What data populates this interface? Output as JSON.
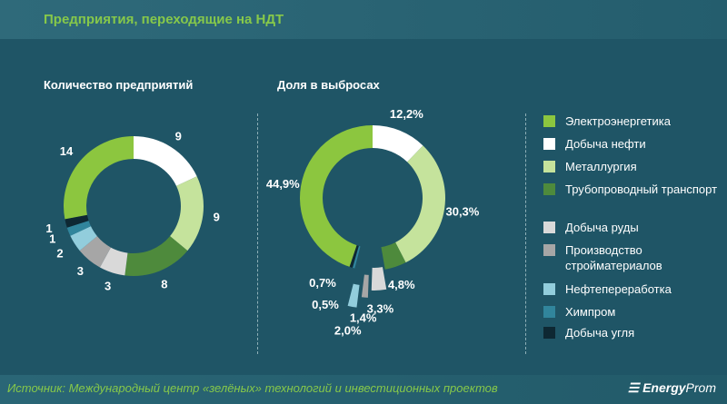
{
  "title": "Предприятия, переходящие на НДТ",
  "source": "Источник: Международный  центр «зелёных» технологий и инвестиционных  проектов",
  "logo": {
    "a": "Energy",
    "b": "Prom"
  },
  "chart_data": [
    {
      "type": "pie",
      "title": "Количество  предприятий",
      "categories": [
        "Добыча нефти",
        "Металлургия",
        "Трубопроводный транспорт",
        "Добыча руды",
        "Производство стройматериалов",
        "Нефтепереработка",
        "Химпром",
        "Добыча угля",
        "Электроэнергетика"
      ],
      "values": [
        9,
        9,
        8,
        3,
        3,
        2,
        1,
        1,
        14
      ],
      "labels": [
        "9",
        "9",
        "8",
        "3",
        "3",
        "2",
        "1",
        "1",
        "14"
      ]
    },
    {
      "type": "pie",
      "title": "Доля в выбросах",
      "categories": [
        "Добыча нефти",
        "Металлургия",
        "Трубопроводный транспорт",
        "Добыча руды",
        "Производство стройматериалов",
        "Нефтепереработка",
        "Химпром",
        "Добыча угля",
        "Электроэнергетика"
      ],
      "values": [
        12.2,
        30.3,
        4.8,
        3.3,
        1.4,
        2.0,
        0.5,
        0.7,
        44.9
      ],
      "labels": [
        "12,2%",
        "30,3%",
        "4,8%",
        "3,3%",
        "1,4%",
        "2,0%",
        "0,5%",
        "0,7%",
        "44,9%"
      ]
    }
  ],
  "legend": [
    {
      "label": "Электроэнергетика",
      "color": "#8cc63f"
    },
    {
      "label": "Добыча нефти",
      "color": "#ffffff"
    },
    {
      "label": "Металлургия",
      "color": "#c5e39c"
    },
    {
      "label": "Трубопроводный транспорт",
      "color": "#4e8a3c"
    },
    {
      "label": "Добыча руды",
      "color": "#d9d9d9"
    },
    {
      "label": "Производство стройматериалов",
      "color": "#a6a6a6"
    },
    {
      "label": "Нефтепереработка",
      "color": "#92cddc"
    },
    {
      "label": "Химпром",
      "color": "#31859c"
    },
    {
      "label": "Добыча угля",
      "color": "#0e2833"
    }
  ],
  "slice_colors": [
    "#ffffff",
    "#c5e39c",
    "#4e8a3c",
    "#d9d9d9",
    "#a6a6a6",
    "#92cddc",
    "#31859c",
    "#0e2833",
    "#8cc63f"
  ]
}
